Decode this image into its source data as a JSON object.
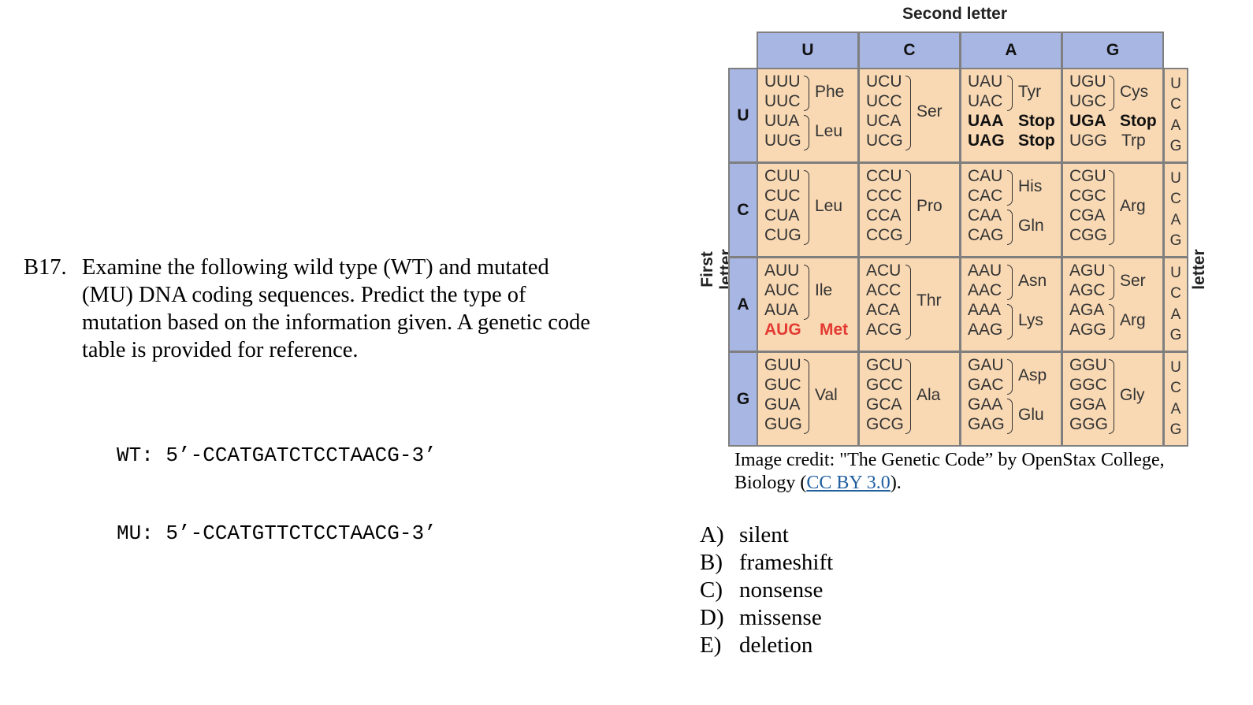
{
  "question": {
    "number": "B17.",
    "text": "Examine the following wild type (WT) and mutated (MU) DNA coding sequences.  Predict the type of mutation based on the information given.  A genetic code table is provided for reference.",
    "sequences": [
      {
        "label": "WT:",
        "seq": "5’-CCATGATCTCCTAACG-3’"
      },
      {
        "label": "MU:",
        "seq": "5’-CCATGTTCTCCTAACG-3’"
      }
    ]
  },
  "codon_table": {
    "second_letter_title": "Second letter",
    "first_letter_title": "First letter",
    "third_letter_title": "Third letter",
    "columns": [
      "U",
      "C",
      "A",
      "G"
    ],
    "rows": [
      "U",
      "C",
      "A",
      "G"
    ],
    "third_letters": [
      "U",
      "C",
      "A",
      "G"
    ],
    "cells": [
      [
        {
          "codons": [
            "UUU",
            "UUC",
            "UUA",
            "UUG"
          ],
          "groups": [
            {
              "aa": "Phe",
              "from": 0,
              "to": 1
            },
            {
              "aa": "Leu",
              "from": 2,
              "to": 3
            }
          ]
        },
        {
          "codons": [
            "UCU",
            "UCC",
            "UCA",
            "UCG"
          ],
          "groups": [
            {
              "aa": "Ser",
              "from": 0,
              "to": 3
            }
          ]
        },
        {
          "codons": [
            "UAU",
            "UAC",
            "UAA",
            "UAG"
          ],
          "groups": [
            {
              "aa": "Tyr",
              "from": 0,
              "to": 1
            }
          ],
          "stops": [
            {
              "row": 2,
              "label": "Stop"
            },
            {
              "row": 3,
              "label": "Stop"
            }
          ]
        },
        {
          "codons": [
            "UGU",
            "UGC",
            "UGA",
            "UGG"
          ],
          "groups": [
            {
              "aa": "Cys",
              "from": 0,
              "to": 1
            }
          ],
          "stops": [
            {
              "row": 2,
              "label": "Stop"
            }
          ],
          "singles": [
            {
              "row": 3,
              "label": "Trp"
            }
          ]
        }
      ],
      [
        {
          "codons": [
            "CUU",
            "CUC",
            "CUA",
            "CUG"
          ],
          "groups": [
            {
              "aa": "Leu",
              "from": 0,
              "to": 3
            }
          ]
        },
        {
          "codons": [
            "CCU",
            "CCC",
            "CCA",
            "CCG"
          ],
          "groups": [
            {
              "aa": "Pro",
              "from": 0,
              "to": 3
            }
          ]
        },
        {
          "codons": [
            "CAU",
            "CAC",
            "CAA",
            "CAG"
          ],
          "groups": [
            {
              "aa": "His",
              "from": 0,
              "to": 1
            },
            {
              "aa": "Gln",
              "from": 2,
              "to": 3
            }
          ]
        },
        {
          "codons": [
            "CGU",
            "CGC",
            "CGA",
            "CGG"
          ],
          "groups": [
            {
              "aa": "Arg",
              "from": 0,
              "to": 3
            }
          ]
        }
      ],
      [
        {
          "codons": [
            "AUU",
            "AUC",
            "AUA",
            "AUG"
          ],
          "groups": [
            {
              "aa": "Ile",
              "from": 0,
              "to": 2
            }
          ],
          "start": {
            "row": 3,
            "label": "Met"
          }
        },
        {
          "codons": [
            "ACU",
            "ACC",
            "ACA",
            "ACG"
          ],
          "groups": [
            {
              "aa": "Thr",
              "from": 0,
              "to": 3
            }
          ]
        },
        {
          "codons": [
            "AAU",
            "AAC",
            "AAA",
            "AAG"
          ],
          "groups": [
            {
              "aa": "Asn",
              "from": 0,
              "to": 1
            },
            {
              "aa": "Lys",
              "from": 2,
              "to": 3
            }
          ]
        },
        {
          "codons": [
            "AGU",
            "AGC",
            "AGA",
            "AGG"
          ],
          "groups": [
            {
              "aa": "Ser",
              "from": 0,
              "to": 1
            },
            {
              "aa": "Arg",
              "from": 2,
              "to": 3
            }
          ]
        }
      ],
      [
        {
          "codons": [
            "GUU",
            "GUC",
            "GUA",
            "GUG"
          ],
          "groups": [
            {
              "aa": "Val",
              "from": 0,
              "to": 3
            }
          ]
        },
        {
          "codons": [
            "GCU",
            "GCC",
            "GCA",
            "GCG"
          ],
          "groups": [
            {
              "aa": "Ala",
              "from": 0,
              "to": 3
            }
          ]
        },
        {
          "codons": [
            "GAU",
            "GAC",
            "GAA",
            "GAG"
          ],
          "groups": [
            {
              "aa": "Asp",
              "from": 0,
              "to": 1
            },
            {
              "aa": "Glu",
              "from": 2,
              "to": 3
            }
          ]
        },
        {
          "codons": [
            "GGU",
            "GGC",
            "GGA",
            "GGG"
          ],
          "groups": [
            {
              "aa": "Gly",
              "from": 0,
              "to": 3
            }
          ]
        }
      ]
    ],
    "colors": {
      "header": "#a7b6e2",
      "cell": "#f9d9b4",
      "start": "#e33b33"
    }
  },
  "credit": {
    "prefix": "Image credit: \"The Genetic Code” by OpenStax College, Biology (",
    "link_text": "CC BY 3.0",
    "suffix": ")."
  },
  "choices": [
    {
      "letter": "A)",
      "text": "silent"
    },
    {
      "letter": "B)",
      "text": "frameshift"
    },
    {
      "letter": "C)",
      "text": "nonsense"
    },
    {
      "letter": "D)",
      "text": "missense"
    },
    {
      "letter": "E)",
      "text": "deletion"
    }
  ]
}
